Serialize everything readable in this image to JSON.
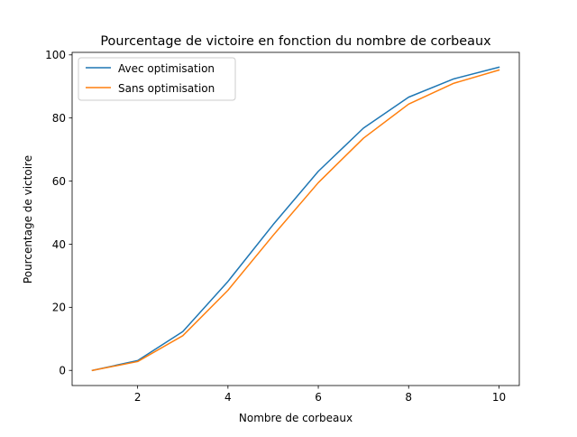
{
  "chart_data": {
    "type": "line",
    "title": "Pourcentage de victoire en fonction du nombre de corbeaux",
    "xlabel": "Nombre de corbeaux",
    "ylabel": "Pourcentage de victoire",
    "xlim": [
      0.55,
      10.45
    ],
    "ylim": [
      -4.8,
      100.8
    ],
    "xticks": [
      2,
      4,
      6,
      8,
      10
    ],
    "yticks": [
      0,
      20,
      40,
      60,
      80,
      100
    ],
    "grid": false,
    "legend": "top-left",
    "x": [
      1,
      2,
      3,
      4,
      5,
      6,
      7,
      8,
      9,
      10
    ],
    "series": [
      {
        "name": "Avec optimisation",
        "color": "#1f77b4",
        "values": [
          0,
          3.1,
          12.3,
          28.2,
          46.2,
          63.1,
          76.8,
          86.6,
          92.4,
          96.1
        ]
      },
      {
        "name": "Sans optimisation",
        "color": "#ff7f0e",
        "values": [
          0,
          2.8,
          11.0,
          25.4,
          42.8,
          59.5,
          73.6,
          84.4,
          91.0,
          95.2
        ]
      }
    ]
  }
}
